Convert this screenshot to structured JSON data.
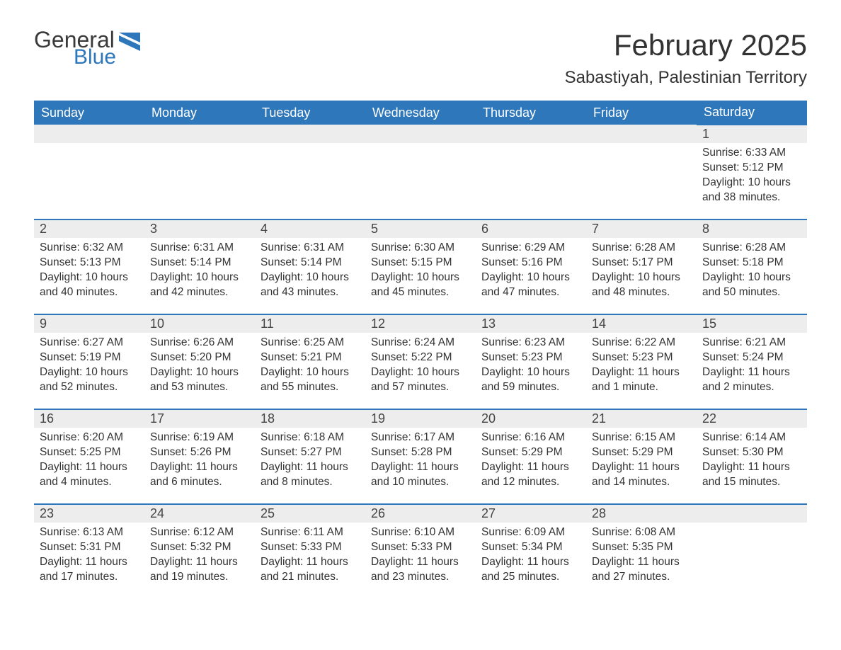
{
  "brand": {
    "word1": "General",
    "word2": "Blue",
    "accent_color": "#2e77bb"
  },
  "title": "February 2025",
  "location": "Sabastiyah, Palestinian Territory",
  "colors": {
    "header_bg": "#2e77bb",
    "header_text": "#ffffff",
    "daynum_bg": "#ededed",
    "row_border": "#2e77bb",
    "body_text": "#333333",
    "page_bg": "#ffffff"
  },
  "weekdays": [
    "Sunday",
    "Monday",
    "Tuesday",
    "Wednesday",
    "Thursday",
    "Friday",
    "Saturday"
  ],
  "weeks": [
    [
      null,
      null,
      null,
      null,
      null,
      null,
      {
        "n": "1",
        "sunrise": "6:33 AM",
        "sunset": "5:12 PM",
        "daylight": "10 hours and 38 minutes."
      }
    ],
    [
      {
        "n": "2",
        "sunrise": "6:32 AM",
        "sunset": "5:13 PM",
        "daylight": "10 hours and 40 minutes."
      },
      {
        "n": "3",
        "sunrise": "6:31 AM",
        "sunset": "5:14 PM",
        "daylight": "10 hours and 42 minutes."
      },
      {
        "n": "4",
        "sunrise": "6:31 AM",
        "sunset": "5:14 PM",
        "daylight": "10 hours and 43 minutes."
      },
      {
        "n": "5",
        "sunrise": "6:30 AM",
        "sunset": "5:15 PM",
        "daylight": "10 hours and 45 minutes."
      },
      {
        "n": "6",
        "sunrise": "6:29 AM",
        "sunset": "5:16 PM",
        "daylight": "10 hours and 47 minutes."
      },
      {
        "n": "7",
        "sunrise": "6:28 AM",
        "sunset": "5:17 PM",
        "daylight": "10 hours and 48 minutes."
      },
      {
        "n": "8",
        "sunrise": "6:28 AM",
        "sunset": "5:18 PM",
        "daylight": "10 hours and 50 minutes."
      }
    ],
    [
      {
        "n": "9",
        "sunrise": "6:27 AM",
        "sunset": "5:19 PM",
        "daylight": "10 hours and 52 minutes."
      },
      {
        "n": "10",
        "sunrise": "6:26 AM",
        "sunset": "5:20 PM",
        "daylight": "10 hours and 53 minutes."
      },
      {
        "n": "11",
        "sunrise": "6:25 AM",
        "sunset": "5:21 PM",
        "daylight": "10 hours and 55 minutes."
      },
      {
        "n": "12",
        "sunrise": "6:24 AM",
        "sunset": "5:22 PM",
        "daylight": "10 hours and 57 minutes."
      },
      {
        "n": "13",
        "sunrise": "6:23 AM",
        "sunset": "5:23 PM",
        "daylight": "10 hours and 59 minutes."
      },
      {
        "n": "14",
        "sunrise": "6:22 AM",
        "sunset": "5:23 PM",
        "daylight": "11 hours and 1 minute."
      },
      {
        "n": "15",
        "sunrise": "6:21 AM",
        "sunset": "5:24 PM",
        "daylight": "11 hours and 2 minutes."
      }
    ],
    [
      {
        "n": "16",
        "sunrise": "6:20 AM",
        "sunset": "5:25 PM",
        "daylight": "11 hours and 4 minutes."
      },
      {
        "n": "17",
        "sunrise": "6:19 AM",
        "sunset": "5:26 PM",
        "daylight": "11 hours and 6 minutes."
      },
      {
        "n": "18",
        "sunrise": "6:18 AM",
        "sunset": "5:27 PM",
        "daylight": "11 hours and 8 minutes."
      },
      {
        "n": "19",
        "sunrise": "6:17 AM",
        "sunset": "5:28 PM",
        "daylight": "11 hours and 10 minutes."
      },
      {
        "n": "20",
        "sunrise": "6:16 AM",
        "sunset": "5:29 PM",
        "daylight": "11 hours and 12 minutes."
      },
      {
        "n": "21",
        "sunrise": "6:15 AM",
        "sunset": "5:29 PM",
        "daylight": "11 hours and 14 minutes."
      },
      {
        "n": "22",
        "sunrise": "6:14 AM",
        "sunset": "5:30 PM",
        "daylight": "11 hours and 15 minutes."
      }
    ],
    [
      {
        "n": "23",
        "sunrise": "6:13 AM",
        "sunset": "5:31 PM",
        "daylight": "11 hours and 17 minutes."
      },
      {
        "n": "24",
        "sunrise": "6:12 AM",
        "sunset": "5:32 PM",
        "daylight": "11 hours and 19 minutes."
      },
      {
        "n": "25",
        "sunrise": "6:11 AM",
        "sunset": "5:33 PM",
        "daylight": "11 hours and 21 minutes."
      },
      {
        "n": "26",
        "sunrise": "6:10 AM",
        "sunset": "5:33 PM",
        "daylight": "11 hours and 23 minutes."
      },
      {
        "n": "27",
        "sunrise": "6:09 AM",
        "sunset": "5:34 PM",
        "daylight": "11 hours and 25 minutes."
      },
      {
        "n": "28",
        "sunrise": "6:08 AM",
        "sunset": "5:35 PM",
        "daylight": "11 hours and 27 minutes."
      },
      null
    ]
  ],
  "labels": {
    "sunrise": "Sunrise:",
    "sunset": "Sunset:",
    "daylight": "Daylight:"
  }
}
